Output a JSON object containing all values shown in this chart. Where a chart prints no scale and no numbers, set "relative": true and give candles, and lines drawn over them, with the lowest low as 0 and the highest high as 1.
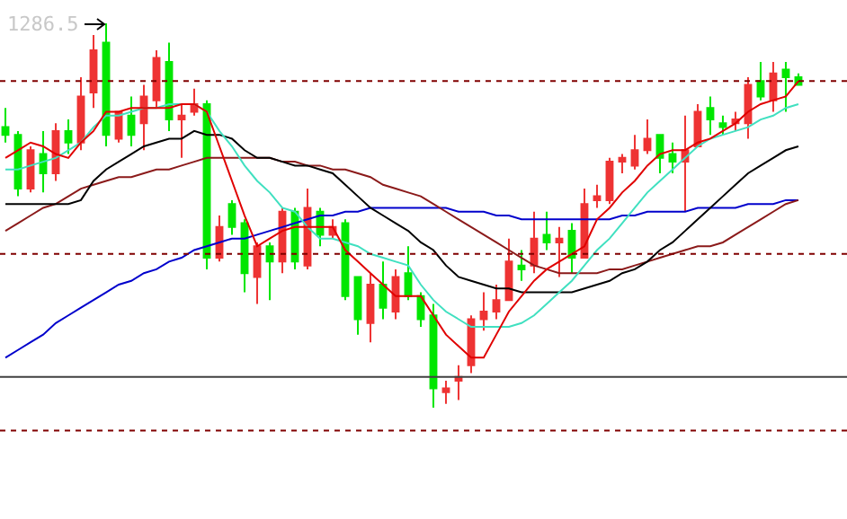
{
  "chart_data": {
    "type": "candlestick",
    "relative": true,
    "annotations": [
      "1286.5"
    ],
    "categories": [
      null,
      null,
      null,
      null,
      null,
      null,
      null,
      null,
      null,
      null,
      null,
      null,
      null,
      null,
      null,
      null,
      null,
      null,
      null,
      null,
      null,
      null,
      null,
      null,
      null,
      null,
      null,
      null,
      null,
      null,
      null,
      null,
      null,
      null,
      null,
      null,
      null,
      null,
      null,
      null,
      null,
      null,
      null,
      null,
      null,
      null,
      null,
      null,
      null,
      null,
      null,
      null,
      null,
      null,
      null,
      null,
      null,
      null,
      null,
      null,
      null,
      null,
      null,
      null
    ],
    "ohlc": [
      [
        0.73,
        0.78,
        0.69,
        0.71
      ],
      [
        0.71,
        0.72,
        0.55,
        0.57
      ],
      [
        0.57,
        0.68,
        0.56,
        0.67
      ],
      [
        0.66,
        0.72,
        0.56,
        0.61
      ],
      [
        0.61,
        0.74,
        0.59,
        0.72
      ],
      [
        0.72,
        0.75,
        0.66,
        0.69
      ],
      [
        0.69,
        0.86,
        0.67,
        0.81
      ],
      [
        0.82,
        0.97,
        0.78,
        0.93
      ],
      [
        0.95,
        1,
        0.68,
        0.71
      ],
      [
        0.7,
        0.77,
        0.69,
        0.77
      ],
      [
        0.76,
        0.81,
        0.68,
        0.71
      ],
      [
        0.74,
        0.84,
        0.67,
        0.81
      ],
      [
        0.8,
        0.93,
        0.78,
        0.91
      ],
      [
        0.9,
        0.95,
        0.72,
        0.75
      ],
      [
        0.75,
        0.79,
        0.65,
        0.76
      ],
      [
        0.77,
        0.83,
        0.76,
        0.79
      ],
      [
        0.79,
        0.8,
        0.36,
        0.39
      ],
      [
        0.39,
        0.5,
        0.38,
        0.47
      ],
      [
        0.53,
        0.54,
        0.45,
        0.47
      ],
      [
        0.48,
        0.49,
        0.3,
        0.35
      ],
      [
        0.34,
        0.43,
        0.27,
        0.42
      ],
      [
        0.42,
        0.43,
        0.28,
        0.38
      ],
      [
        0.38,
        0.52,
        0.35,
        0.51
      ],
      [
        0.51,
        0.52,
        0.36,
        0.38
      ],
      [
        0.37,
        0.57,
        0.36,
        0.52
      ],
      [
        0.51,
        0.52,
        0.42,
        0.45
      ],
      [
        0.45,
        0.49,
        0.44,
        0.47
      ],
      [
        0.48,
        0.49,
        0.28,
        0.29
      ],
      [
        0.34,
        0.34,
        0.19,
        0.23
      ],
      [
        0.22,
        0.35,
        0.17,
        0.32
      ],
      [
        0.32,
        0.38,
        0.23,
        0.26
      ],
      [
        0.25,
        0.36,
        0.23,
        0.34
      ],
      [
        0.35,
        0.42,
        0.28,
        0.29
      ],
      [
        0.29,
        0.3,
        0.21,
        0.23
      ],
      [
        0.24,
        0.27,
        0,
        0.05
      ],
      [
        0.04,
        0.07,
        0.01,
        0.05
      ],
      [
        0.07,
        0.11,
        0.02,
        0.08
      ],
      [
        0.11,
        0.24,
        0.09,
        0.23
      ],
      [
        0.23,
        0.3,
        0.2,
        0.25
      ],
      [
        0.25,
        0.32,
        0.23,
        0.28
      ],
      [
        0.28,
        0.44,
        0.28,
        0.38
      ],
      [
        0.37,
        0.41,
        0.33,
        0.36
      ],
      [
        0.37,
        0.51,
        0.35,
        0.44
      ],
      [
        0.45,
        0.51,
        0.41,
        0.43
      ],
      [
        0.43,
        0.47,
        0.34,
        0.44
      ],
      [
        0.46,
        0.48,
        0.35,
        0.39
      ],
      [
        0.39,
        0.57,
        0.39,
        0.53
      ],
      [
        0.54,
        0.58,
        0.52,
        0.55
      ],
      [
        0.54,
        0.65,
        0.53,
        0.64
      ],
      [
        0.64,
        0.66,
        0.61,
        0.65
      ],
      [
        0.63,
        0.71,
        0.62,
        0.67
      ],
      [
        0.67,
        0.75,
        0.66,
        0.7
      ],
      [
        0.71,
        0.71,
        0.61,
        0.65
      ],
      [
        0.66,
        0.69,
        0.61,
        0.64
      ],
      [
        0.64,
        0.76,
        0.51,
        0.67
      ],
      [
        0.68,
        0.79,
        0.68,
        0.77
      ],
      [
        0.78,
        0.81,
        0.71,
        0.75
      ],
      [
        0.74,
        0.76,
        0.71,
        0.73
      ],
      [
        0.74,
        0.77,
        0.72,
        0.75
      ],
      [
        0.74,
        0.86,
        0.7,
        0.84
      ],
      [
        0.85,
        0.9,
        0.8,
        0.81
      ],
      [
        0.8,
        0.9,
        0.77,
        0.87
      ],
      [
        0.88,
        0.9,
        0.77,
        0.86
      ],
      [
        0.86,
        0.87,
        0.84,
        0.84
      ]
    ],
    "colors": [
      "#00e600",
      "#00e600",
      "#ee3333",
      "#00e600",
      "#ee3333",
      "#00e600",
      "#ee3333",
      "#ee3333",
      "#00e600",
      "#ee3333",
      "#00e600",
      "#ee3333",
      "#ee3333",
      "#00e600",
      "#ee3333",
      "#ee3333",
      "#00e600",
      "#ee3333",
      "#00e600",
      "#00e600",
      "#ee3333",
      "#00e600",
      "#ee3333",
      "#00e600",
      "#ee3333",
      "#00e600",
      "#ee3333",
      "#00e600",
      "#00e600",
      "#ee3333",
      "#00e600",
      "#ee3333",
      "#00e600",
      "#00e600",
      "#00e600",
      "#ee3333",
      "#ee3333",
      "#ee3333",
      "#ee3333",
      "#ee3333",
      "#ee3333",
      "#00e600",
      "#ee3333",
      "#00e600",
      "#ee3333",
      "#00e600",
      "#ee3333",
      "#ee3333",
      "#ee3333",
      "#ee3333",
      "#ee3333",
      "#ee3333",
      "#00e600",
      "#00e600",
      "#ee3333",
      "#ee3333",
      "#00e600",
      "#00e600",
      "#ee3333",
      "#ee3333",
      "#00e600",
      "#ee3333",
      "#00e600",
      "#00e600"
    ],
    "series": [
      {
        "type": "line",
        "color": "#0000cc",
        "values": [
          0.13,
          0.15,
          0.17,
          0.19,
          0.22,
          0.24,
          0.26,
          0.28,
          0.3,
          0.32,
          0.33,
          0.35,
          0.36,
          0.38,
          0.39,
          0.41,
          0.42,
          0.43,
          0.44,
          0.44,
          0.45,
          0.46,
          0.47,
          0.48,
          0.49,
          0.5,
          0.5,
          0.51,
          0.51,
          0.52,
          0.52,
          0.52,
          0.52,
          0.52,
          0.52,
          0.52,
          0.51,
          0.51,
          0.51,
          0.5,
          0.5,
          0.49,
          0.49,
          0.49,
          0.49,
          0.49,
          0.49,
          0.49,
          0.49,
          0.5,
          0.5,
          0.51,
          0.51,
          0.51,
          0.51,
          0.52,
          0.52,
          0.52,
          0.52,
          0.53,
          0.53,
          0.53,
          0.54,
          0.54
        ]
      },
      {
        "type": "line",
        "color": "#8b1a1a",
        "values": [
          0.46,
          0.48,
          0.5,
          0.52,
          0.53,
          0.55,
          0.57,
          0.58,
          0.59,
          0.6,
          0.6,
          0.61,
          0.62,
          0.62,
          0.63,
          0.64,
          0.65,
          0.65,
          0.65,
          0.65,
          0.65,
          0.65,
          0.64,
          0.64,
          0.63,
          0.63,
          0.62,
          0.62,
          0.61,
          0.6,
          0.58,
          0.57,
          0.56,
          0.55,
          0.53,
          0.51,
          0.49,
          0.47,
          0.45,
          0.43,
          0.41,
          0.39,
          0.37,
          0.36,
          0.35,
          0.35,
          0.35,
          0.35,
          0.36,
          0.36,
          0.37,
          0.38,
          0.39,
          0.4,
          0.41,
          0.42,
          0.42,
          0.43,
          0.45,
          0.47,
          0.49,
          0.51,
          0.53,
          0.54
        ]
      },
      {
        "type": "line",
        "color": "#000000",
        "values": [
          0.53,
          0.53,
          0.53,
          0.53,
          0.53,
          0.53,
          0.54,
          0.59,
          0.62,
          0.64,
          0.66,
          0.68,
          0.69,
          0.7,
          0.7,
          0.72,
          0.71,
          0.71,
          0.7,
          0.67,
          0.65,
          0.65,
          0.64,
          0.63,
          0.63,
          0.62,
          0.61,
          0.58,
          0.55,
          0.52,
          0.5,
          0.48,
          0.46,
          0.43,
          0.41,
          0.37,
          0.34,
          0.33,
          0.32,
          0.31,
          0.31,
          0.3,
          0.3,
          0.3,
          0.3,
          0.3,
          0.31,
          0.32,
          0.33,
          0.35,
          0.36,
          0.38,
          0.41,
          0.43,
          0.46,
          0.49,
          0.52,
          0.55,
          0.58,
          0.61,
          0.63,
          0.65,
          0.67,
          0.68
        ]
      },
      {
        "type": "line",
        "color": "#40e0c0",
        "values": [
          0.62,
          0.62,
          0.63,
          0.64,
          0.65,
          0.67,
          0.69,
          0.73,
          0.76,
          0.76,
          0.77,
          0.78,
          0.78,
          0.79,
          0.79,
          0.79,
          0.77,
          0.72,
          0.68,
          0.63,
          0.59,
          0.56,
          0.52,
          0.51,
          0.47,
          0.44,
          0.44,
          0.43,
          0.42,
          0.4,
          0.39,
          0.38,
          0.37,
          0.32,
          0.28,
          0.25,
          0.23,
          0.21,
          0.21,
          0.21,
          0.21,
          0.22,
          0.24,
          0.27,
          0.3,
          0.33,
          0.37,
          0.41,
          0.44,
          0.48,
          0.52,
          0.56,
          0.59,
          0.62,
          0.65,
          0.68,
          0.7,
          0.71,
          0.72,
          0.73,
          0.75,
          0.76,
          0.78,
          0.79
        ]
      },
      {
        "type": "line",
        "color": "#e00000",
        "values": [
          0.65,
          0.67,
          0.69,
          0.68,
          0.66,
          0.65,
          0.69,
          0.72,
          0.77,
          0.77,
          0.78,
          0.78,
          0.78,
          0.78,
          0.79,
          0.79,
          0.77,
          0.68,
          0.59,
          0.5,
          0.42,
          0.44,
          0.46,
          0.47,
          0.47,
          0.47,
          0.47,
          0.41,
          0.38,
          0.35,
          0.32,
          0.29,
          0.29,
          0.29,
          0.24,
          0.19,
          0.16,
          0.13,
          0.13,
          0.19,
          0.25,
          0.29,
          0.33,
          0.36,
          0.38,
          0.4,
          0.42,
          0.49,
          0.52,
          0.56,
          0.59,
          0.63,
          0.66,
          0.67,
          0.67,
          0.69,
          0.7,
          0.72,
          0.74,
          0.77,
          0.79,
          0.8,
          0.81,
          0.85
        ]
      }
    ],
    "ref_lines": [
      {
        "axis": "y",
        "value": 0.85,
        "line_style": "dotted",
        "color": "#800000"
      },
      {
        "axis": "y",
        "value": 0.4,
        "line_style": "dotted",
        "color": "#800000"
      },
      {
        "axis": "y",
        "value": 0.08,
        "line_style": "solid",
        "color": "#404040"
      },
      {
        "axis": "y",
        "value": -0.06,
        "line_style": "dotted",
        "color": "#800000"
      }
    ]
  }
}
